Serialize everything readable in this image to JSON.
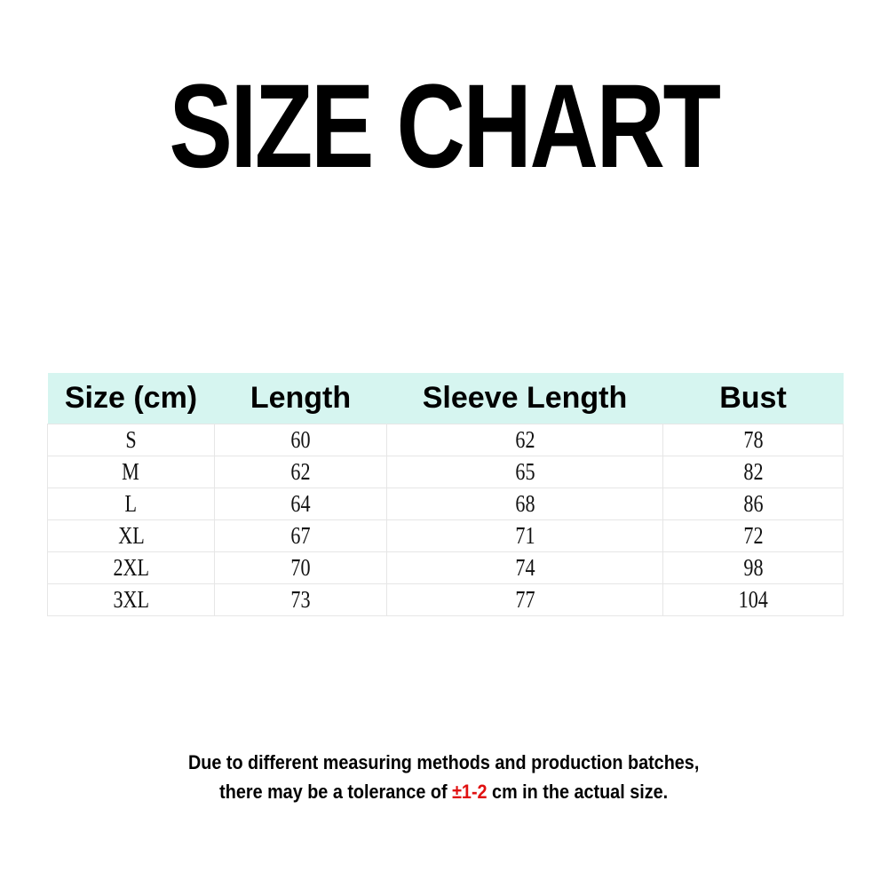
{
  "title": "SIZE CHART",
  "table": {
    "headers": [
      "Size (cm)",
      "Length",
      "Sleeve Length",
      "Bust"
    ],
    "rows": [
      [
        "S",
        "60",
        "62",
        "78"
      ],
      [
        "M",
        "62",
        "65",
        "82"
      ],
      [
        "L",
        "64",
        "68",
        "86"
      ],
      [
        "XL",
        "67",
        "71",
        "72"
      ],
      [
        "2XL",
        "70",
        "74",
        "98"
      ],
      [
        "3XL",
        "73",
        "77",
        "104"
      ]
    ],
    "header_color": "#d6f5f0"
  },
  "note": {
    "line1": "Due to different measuring methods and production batches,",
    "line2_before": "there may be a tolerance of ",
    "line2_highlight": "±1-2",
    "line2_after": " cm in the actual size.",
    "highlight_color": "#e01010"
  }
}
